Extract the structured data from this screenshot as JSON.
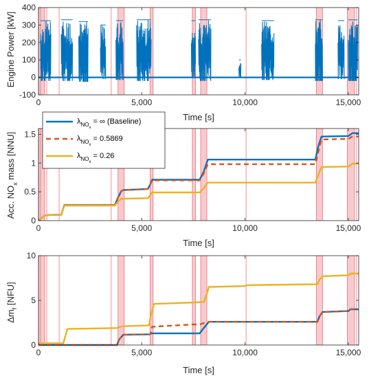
{
  "figure": {
    "colors": {
      "baseline": "#0072BD",
      "lambda_0_5869": "#D95319",
      "lambda_0_26": "#EDB120",
      "shade": "#F4A7AD",
      "shade_line": "#EF6F78",
      "axis": "#262626"
    }
  },
  "chart_data": [
    {
      "type": "line",
      "id": "power",
      "xlabel": "Time [s]",
      "ylabel": "Engine Power [kW]",
      "xlim": [
        0,
        15500
      ],
      "ylim": [
        -100,
        400
      ],
      "xticks": [
        0,
        5000,
        10000,
        15000
      ],
      "xticklabels": [
        "0",
        "5,000",
        "10,000",
        "15,000"
      ],
      "yticks": [
        -100,
        0,
        100,
        200,
        300,
        400
      ],
      "yticklabels": [
        "-100",
        "0",
        "100",
        "200",
        "300",
        "400"
      ],
      "grid": false,
      "series": [
        {
          "color": "#0072BD",
          "idle_level": 0,
          "bursts": [
            {
              "start": 100,
              "end": 600,
              "max": 325,
              "min": -20
            },
            {
              "start": 1100,
              "end": 1650,
              "max": 330,
              "min": -20
            },
            {
              "start": 1950,
              "end": 2400,
              "max": 320,
              "min": -25
            },
            {
              "start": 3000,
              "end": 3250,
              "max": 300,
              "min": -10
            },
            {
              "start": 3750,
              "end": 4100,
              "max": 325,
              "min": -15
            },
            {
              "start": 4750,
              "end": 5450,
              "max": 330,
              "min": -20
            },
            {
              "start": 7400,
              "end": 7600,
              "max": 325,
              "min": -5
            },
            {
              "start": 7750,
              "end": 8350,
              "max": 330,
              "min": -20
            },
            {
              "start": 9700,
              "end": 9800,
              "max": 100,
              "min": 0
            },
            {
              "start": 10800,
              "end": 11400,
              "max": 325,
              "min": -15
            },
            {
              "start": 13400,
              "end": 13750,
              "max": 330,
              "min": -20
            },
            {
              "start": 14500,
              "end": 14800,
              "max": 325,
              "min": -10
            },
            {
              "start": 15000,
              "end": 15450,
              "max": 330,
              "min": -20
            }
          ]
        }
      ]
    },
    {
      "type": "line",
      "id": "nox",
      "xlabel": "Time [s]",
      "ylabel": "Acc. NOx mass [NNU]",
      "xlim": [
        0,
        15500
      ],
      "ylim": [
        0,
        1.6
      ],
      "xticks": [
        0,
        5000,
        10000,
        15000
      ],
      "xticklabels": [
        "0",
        "5,000",
        "10,000",
        "15,000"
      ],
      "yticks": [
        0,
        0.5,
        1,
        1.5
      ],
      "yticklabels": [
        "0",
        "0.5",
        "1",
        "1.5"
      ],
      "grid": false,
      "legend": {
        "placement": "top-left",
        "entries": [
          {
            "series": 0,
            "main": "λ",
            "sub": "NO",
            "subsub": "x",
            "text": " = ∞ (Baseline)"
          },
          {
            "series": 1,
            "main": "λ",
            "sub": "NO",
            "subsub": "x",
            "text": " = 0.5869"
          },
          {
            "series": 2,
            "main": "λ",
            "sub": "NO",
            "subsub": "x",
            "text": " = 0.26"
          }
        ]
      },
      "series": [
        {
          "color": "#0072BD",
          "dash": false,
          "x": [
            0,
            100,
            300,
            600,
            1100,
            1250,
            3700,
            3850,
            4000,
            4100,
            5300,
            5400,
            5500,
            7800,
            8000,
            8200,
            13400,
            13550,
            13700,
            15000,
            15200,
            15500
          ],
          "y": [
            0,
            0.03,
            0.09,
            0.1,
            0.1,
            0.27,
            0.27,
            0.4,
            0.51,
            0.53,
            0.55,
            0.62,
            0.71,
            0.71,
            0.85,
            1.06,
            1.06,
            1.3,
            1.46,
            1.47,
            1.52,
            1.52
          ]
        },
        {
          "color": "#D95319",
          "dash": true,
          "x": [
            0,
            100,
            300,
            600,
            1100,
            1250,
            3700,
            3850,
            4000,
            4100,
            5300,
            5400,
            5500,
            7800,
            8000,
            8200,
            13400,
            13550,
            13700,
            15000,
            15200,
            15500
          ],
          "y": [
            0,
            0.03,
            0.09,
            0.1,
            0.1,
            0.27,
            0.27,
            0.4,
            0.51,
            0.53,
            0.55,
            0.62,
            0.7,
            0.7,
            0.82,
            0.98,
            0.98,
            1.2,
            1.41,
            1.42,
            1.46,
            1.46
          ]
        },
        {
          "color": "#EDB120",
          "dash": false,
          "x": [
            0,
            100,
            300,
            600,
            1100,
            1250,
            3700,
            3850,
            4000,
            4100,
            5300,
            5400,
            5500,
            7800,
            8000,
            8200,
            13400,
            13550,
            13700,
            15000,
            15200,
            15500
          ],
          "y": [
            0,
            0.03,
            0.09,
            0.1,
            0.1,
            0.26,
            0.26,
            0.33,
            0.38,
            0.38,
            0.39,
            0.44,
            0.49,
            0.49,
            0.56,
            0.66,
            0.66,
            0.8,
            0.93,
            0.94,
            0.99,
            0.99
          ]
        }
      ]
    },
    {
      "type": "line",
      "id": "fuel",
      "xlabel": "Time [s]",
      "ylabel": "Δm_f [NFU]",
      "xlim": [
        0,
        15500
      ],
      "ylim": [
        0,
        10
      ],
      "xticks": [
        0,
        5000,
        10000,
        15000
      ],
      "xticklabels": [
        "0",
        "5,000",
        "10,000",
        "15,000"
      ],
      "yticks": [
        0,
        5,
        10
      ],
      "yticklabels": [
        "0",
        "5",
        "10"
      ],
      "grid": false,
      "series": [
        {
          "color": "#0072BD",
          "dash": false,
          "x": [
            0,
            3800,
            3900,
            4100,
            5400,
            5450,
            7800,
            8000,
            8250,
            13500,
            13600,
            13750,
            15000,
            15100,
            15500
          ],
          "y": [
            0,
            0,
            0.6,
            1.15,
            1.2,
            1.3,
            1.3,
            1.9,
            2.6,
            2.6,
            3.2,
            3.7,
            3.8,
            4.0,
            4.0
          ]
        },
        {
          "color": "#D95319",
          "dash": true,
          "x": [
            0,
            3800,
            3900,
            4100,
            5400,
            5450,
            5500,
            7500,
            7800,
            8000,
            8250,
            13500,
            13600,
            13750,
            15000,
            15100,
            15500
          ],
          "y": [
            0,
            0,
            0.6,
            1.15,
            1.2,
            1.5,
            2.05,
            2.3,
            2.3,
            2.45,
            2.6,
            2.6,
            3.2,
            3.7,
            3.8,
            4.0,
            4.0
          ]
        },
        {
          "color": "#EDB120",
          "dash": false,
          "x": [
            0,
            1200,
            1400,
            3800,
            3900,
            4100,
            5350,
            5450,
            5600,
            8000,
            8150,
            8250,
            10000,
            10100,
            13500,
            13600,
            13750,
            15000,
            15100,
            15500
          ],
          "y": [
            0.2,
            0.2,
            1.8,
            1.9,
            2.0,
            2.1,
            2.2,
            3.5,
            4.6,
            4.8,
            5.7,
            6.5,
            6.6,
            6.7,
            6.8,
            7.3,
            7.7,
            7.8,
            8.0,
            8.0
          ]
        }
      ]
    }
  ],
  "shaded_regions": [
    {
      "start": 0,
      "end": 300
    },
    {
      "start": 3850,
      "end": 4150
    },
    {
      "start": 5400,
      "end": 5550
    },
    {
      "start": 7450,
      "end": 7600
    },
    {
      "start": 7850,
      "end": 8150
    },
    {
      "start": 13450,
      "end": 13750
    },
    {
      "start": 14950,
      "end": 15300
    }
  ],
  "vertical_lines": [
    100,
    400,
    1000,
    3520,
    10050,
    15400
  ]
}
